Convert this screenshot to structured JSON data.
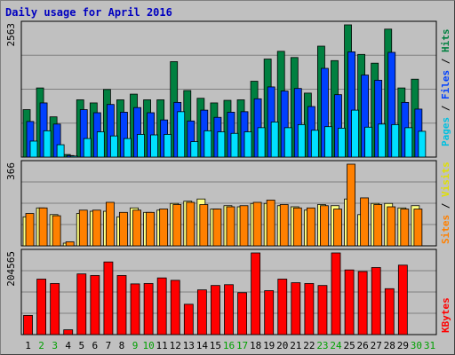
{
  "title": "Daily usage for April 2016",
  "chart_data": [
    {
      "type": "bar",
      "panel": "hits-files-pages",
      "ymax_label": "2563",
      "ylim": [
        0,
        2563
      ],
      "categories": [
        "1",
        "2",
        "3",
        "4",
        "5",
        "6",
        "7",
        "8",
        "9",
        "10",
        "11",
        "12",
        "13",
        "14",
        "15",
        "16",
        "17",
        "18",
        "19",
        "20",
        "21",
        "22",
        "23",
        "24",
        "25",
        "26",
        "27",
        "28",
        "29",
        "30",
        "31"
      ],
      "series": [
        {
          "name": "Hits",
          "color": "#008040",
          "values": [
            920,
            1340,
            780,
            50,
            1110,
            1050,
            1310,
            1110,
            1220,
            1110,
            1110,
            1850,
            1290,
            1140,
            1050,
            1100,
            1110,
            1470,
            1900,
            2050,
            1930,
            1240,
            2150,
            1870,
            2563,
            1990,
            1820,
            2480,
            1340,
            1510,
            0
          ]
        },
        {
          "name": "Files",
          "color": "#0040ff",
          "values": [
            690,
            1050,
            640,
            30,
            920,
            860,
            1020,
            870,
            960,
            860,
            720,
            1060,
            700,
            910,
            770,
            870,
            880,
            1130,
            1360,
            1280,
            1330,
            980,
            1720,
            1210,
            2040,
            1590,
            1490,
            2030,
            1060,
            930,
            0
          ]
        },
        {
          "name": "Pages",
          "color": "#00e0ff",
          "values": [
            310,
            510,
            240,
            20,
            360,
            490,
            410,
            360,
            440,
            430,
            440,
            880,
            300,
            510,
            490,
            460,
            490,
            570,
            680,
            570,
            630,
            520,
            590,
            560,
            910,
            580,
            640,
            630,
            570,
            500,
            0
          ]
        }
      ]
    },
    {
      "type": "bar",
      "panel": "visits-sites",
      "ymax_label": "366",
      "ylim": [
        0,
        366
      ],
      "categories": [
        "1",
        "2",
        "3",
        "4",
        "5",
        "6",
        "7",
        "8",
        "9",
        "10",
        "11",
        "12",
        "13",
        "14",
        "15",
        "16",
        "17",
        "18",
        "19",
        "20",
        "21",
        "22",
        "23",
        "24",
        "25",
        "26",
        "27",
        "28",
        "29",
        "30",
        "31"
      ],
      "series": [
        {
          "name": "Visits",
          "color": "#ffff80",
          "values": [
            130,
            170,
            140,
            12,
            145,
            155,
            155,
            130,
            170,
            150,
            160,
            190,
            200,
            210,
            165,
            180,
            175,
            190,
            190,
            180,
            175,
            160,
            185,
            180,
            210,
            140,
            190,
            190,
            170,
            180,
            0
          ]
        },
        {
          "name": "Sites",
          "color": "#ff8000",
          "values": [
            145,
            170,
            135,
            18,
            160,
            160,
            195,
            150,
            160,
            150,
            165,
            185,
            195,
            185,
            165,
            175,
            180,
            195,
            205,
            185,
            170,
            170,
            180,
            165,
            366,
            215,
            185,
            175,
            165,
            165,
            0
          ]
        }
      ]
    },
    {
      "type": "bar",
      "panel": "kbytes",
      "ymax_label": "204565",
      "ylim": [
        0,
        204565
      ],
      "categories": [
        "1",
        "2",
        "3",
        "4",
        "5",
        "6",
        "7",
        "8",
        "9",
        "10",
        "11",
        "12",
        "13",
        "14",
        "15",
        "16",
        "17",
        "18",
        "19",
        "20",
        "21",
        "22",
        "23",
        "24",
        "25",
        "26",
        "27",
        "28",
        "29",
        "30",
        "31"
      ],
      "series": [
        {
          "name": "KBytes",
          "color": "#ff0000",
          "values": [
            48000,
            139000,
            128000,
            12000,
            152000,
            148000,
            182000,
            148000,
            127000,
            128000,
            142000,
            136000,
            76000,
            112000,
            123000,
            125000,
            105000,
            204565,
            110000,
            139000,
            130000,
            128000,
            123000,
            204565,
            162000,
            158000,
            168000,
            115000,
            174000,
            0,
            0
          ]
        }
      ]
    }
  ],
  "x_labels": {
    "weekend_days": [
      "2",
      "3",
      "9",
      "10",
      "16",
      "17",
      "23",
      "24",
      "30",
      "31"
    ],
    "weekday_color": "#000000",
    "weekend_color": "#00a000"
  },
  "right_labels": {
    "top": [
      {
        "text": "Pages",
        "color": "#00c0e0"
      },
      {
        "text": " / ",
        "color": "#000000"
      },
      {
        "text": "Files",
        "color": "#0040ff"
      },
      {
        "text": " / ",
        "color": "#000000"
      },
      {
        "text": "Hits",
        "color": "#008040"
      }
    ],
    "middle": [
      {
        "text": "Sites",
        "color": "#ff8000"
      },
      {
        "text": " / ",
        "color": "#000000"
      },
      {
        "text": "Visits",
        "color": "#e0e000"
      }
    ],
    "bottom": [
      {
        "text": "KBytes",
        "color": "#ff0000"
      }
    ]
  }
}
